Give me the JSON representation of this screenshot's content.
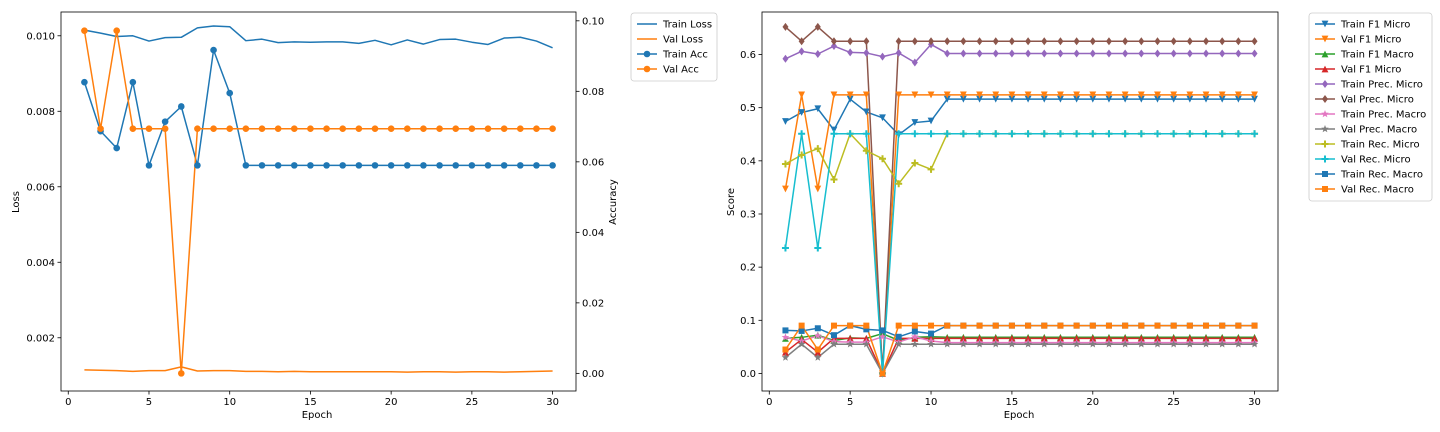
{
  "chart_data": [
    {
      "type": "line",
      "xlabel": "Epoch",
      "ylabel": "Loss",
      "y2label": "Accuracy",
      "xlim": [
        -0.45,
        31.45
      ],
      "ylim": [
        0.00059,
        0.01063
      ],
      "y2lim": [
        -0.005,
        0.1025
      ],
      "x_ticks": [
        0,
        5,
        10,
        15,
        20,
        25,
        30
      ],
      "y_ticks": [
        0.002,
        0.004,
        0.006,
        0.008,
        0.01
      ],
      "y_tick_labels": [
        "0.002",
        "0.004",
        "0.006",
        "0.008",
        "0.010"
      ],
      "y2_ticks": [
        0.0,
        0.02,
        0.04,
        0.06,
        0.08,
        0.1
      ],
      "y2_tick_labels": [
        "0.00",
        "0.02",
        "0.04",
        "0.06",
        "0.08",
        "0.10"
      ],
      "legend_position": "outside upper right",
      "x": [
        1,
        2,
        3,
        4,
        5,
        6,
        7,
        8,
        9,
        10,
        11,
        12,
        13,
        14,
        15,
        16,
        17,
        18,
        19,
        20,
        21,
        22,
        23,
        24,
        25,
        26,
        27,
        28,
        29,
        30
      ],
      "series": [
        {
          "name": "Train Loss",
          "axis": "left",
          "color": "#1f77b4",
          "marker": "none",
          "values": [
            0.01015,
            0.01007,
            0.00998,
            0.01,
            0.00986,
            0.00995,
            0.00996,
            0.01021,
            0.01026,
            0.01024,
            0.00987,
            0.00991,
            0.00982,
            0.00984,
            0.00983,
            0.00984,
            0.00984,
            0.0098,
            0.00988,
            0.00976,
            0.00989,
            0.00978,
            0.0099,
            0.00991,
            0.00983,
            0.00977,
            0.00994,
            0.00996,
            0.00986,
            0.00968
          ]
        },
        {
          "name": "Val Loss",
          "axis": "left",
          "color": "#ff7f0e",
          "marker": "none",
          "values": [
            0.00115,
            0.00114,
            0.00113,
            0.00111,
            0.00113,
            0.00113,
            0.00123,
            0.00112,
            0.00113,
            0.00113,
            0.00111,
            0.00111,
            0.0011,
            0.00111,
            0.0011,
            0.0011,
            0.0011,
            0.0011,
            0.0011,
            0.0011,
            0.00109,
            0.0011,
            0.0011,
            0.00109,
            0.0011,
            0.0011,
            0.00109,
            0.0011,
            0.00111,
            0.00112
          ]
        },
        {
          "name": "Train Acc",
          "axis": "right",
          "color": "#1f77b4",
          "marker": "circle",
          "values": [
            0.0826,
            0.0687,
            0.0639,
            0.0826,
            0.059,
            0.0714,
            0.0757,
            0.059,
            0.0917,
            0.0795,
            0.059,
            0.059,
            0.059,
            0.059,
            0.059,
            0.059,
            0.059,
            0.059,
            0.059,
            0.059,
            0.059,
            0.059,
            0.059,
            0.059,
            0.059,
            0.059,
            0.059,
            0.059,
            0.059,
            0.059
          ]
        },
        {
          "name": "Val Acc",
          "axis": "right",
          "color": "#ff7f0e",
          "marker": "circle",
          "values": [
            0.0972,
            0.0694,
            0.0972,
            0.0694,
            0.0694,
            0.0694,
            0.0,
            0.0694,
            0.0694,
            0.0694,
            0.0694,
            0.0694,
            0.0694,
            0.0694,
            0.0694,
            0.0694,
            0.0694,
            0.0694,
            0.0694,
            0.0694,
            0.0694,
            0.0694,
            0.0694,
            0.0694,
            0.0694,
            0.0694,
            0.0694,
            0.0694,
            0.0694,
            0.0694
          ]
        }
      ]
    },
    {
      "type": "line",
      "xlabel": "Epoch",
      "ylabel": "Score",
      "xlim": [
        -0.45,
        31.45
      ],
      "ylim": [
        -0.033,
        0.68
      ],
      "x_ticks": [
        0,
        5,
        10,
        15,
        20,
        25,
        30
      ],
      "y_ticks": [
        0.0,
        0.1,
        0.2,
        0.3,
        0.4,
        0.5,
        0.6
      ],
      "y_tick_labels": [
        "0.0",
        "0.1",
        "0.2",
        "0.3",
        "0.4",
        "0.5",
        "0.6"
      ],
      "legend_position": "outside upper right",
      "x": [
        1,
        2,
        3,
        4,
        5,
        6,
        7,
        8,
        9,
        10,
        11,
        12,
        13,
        14,
        15,
        16,
        17,
        18,
        19,
        20,
        21,
        22,
        23,
        24,
        25,
        26,
        27,
        28,
        29,
        30
      ],
      "series": [
        {
          "name": "Train F1 Micro",
          "color": "#1f77b4",
          "marker": "tri_down",
          "values": [
            0.474,
            0.491,
            0.498,
            0.458,
            0.516,
            0.492,
            0.481,
            0.449,
            0.472,
            0.475,
            0.516,
            0.516,
            0.516,
            0.516,
            0.516,
            0.516,
            0.516,
            0.516,
            0.516,
            0.516,
            0.516,
            0.516,
            0.516,
            0.516,
            0.516,
            0.516,
            0.516,
            0.516,
            0.516,
            0.516
          ]
        },
        {
          "name": "Val F1 Micro",
          "color": "#ff7f0e",
          "marker": "tri_down",
          "values": [
            0.347,
            0.524,
            0.347,
            0.524,
            0.524,
            0.524,
            0.0,
            0.524,
            0.524,
            0.524,
            0.524,
            0.524,
            0.524,
            0.524,
            0.524,
            0.524,
            0.524,
            0.524,
            0.524,
            0.524,
            0.524,
            0.524,
            0.524,
            0.524,
            0.524,
            0.524,
            0.524,
            0.524,
            0.524,
            0.524
          ]
        },
        {
          "name": "Train F1 Macro",
          "color": "#2ca02c",
          "marker": "tri_up",
          "values": [
            0.066,
            0.068,
            0.072,
            0.062,
            0.067,
            0.066,
            0.075,
            0.062,
            0.068,
            0.069,
            0.068,
            0.068,
            0.068,
            0.068,
            0.068,
            0.068,
            0.068,
            0.068,
            0.068,
            0.068,
            0.068,
            0.068,
            0.068,
            0.068,
            0.068,
            0.068,
            0.068,
            0.068,
            0.068,
            0.068
          ]
        },
        {
          "name": "Val F1 Micro",
          "color": "#d62728",
          "marker": "tri_up",
          "values": [
            0.04,
            0.064,
            0.04,
            0.066,
            0.066,
            0.066,
            0.0,
            0.066,
            0.066,
            0.066,
            0.066,
            0.066,
            0.066,
            0.066,
            0.066,
            0.066,
            0.066,
            0.066,
            0.066,
            0.066,
            0.066,
            0.066,
            0.066,
            0.066,
            0.066,
            0.066,
            0.066,
            0.066,
            0.066,
            0.066
          ]
        },
        {
          "name": "Train Prec. Micro",
          "color": "#9467bd",
          "marker": "diamond",
          "values": [
            0.592,
            0.606,
            0.601,
            0.616,
            0.604,
            0.603,
            0.596,
            0.603,
            0.585,
            0.619,
            0.602,
            0.602,
            0.602,
            0.602,
            0.602,
            0.602,
            0.602,
            0.602,
            0.602,
            0.602,
            0.602,
            0.602,
            0.602,
            0.602,
            0.602,
            0.602,
            0.602,
            0.602,
            0.602,
            0.602
          ]
        },
        {
          "name": "Val Prec. Micro",
          "color": "#8c564b",
          "marker": "diamond",
          "values": [
            0.652,
            0.625,
            0.652,
            0.625,
            0.625,
            0.625,
            0.0,
            0.625,
            0.625,
            0.625,
            0.625,
            0.625,
            0.625,
            0.625,
            0.625,
            0.625,
            0.625,
            0.625,
            0.625,
            0.625,
            0.625,
            0.625,
            0.625,
            0.625,
            0.625,
            0.625,
            0.625,
            0.625,
            0.625,
            0.625
          ]
        },
        {
          "name": "Train Prec. Macro",
          "color": "#e377c2",
          "marker": "star",
          "values": [
            0.068,
            0.061,
            0.071,
            0.06,
            0.059,
            0.059,
            0.069,
            0.059,
            0.069,
            0.061,
            0.058,
            0.058,
            0.058,
            0.058,
            0.058,
            0.058,
            0.058,
            0.058,
            0.058,
            0.058,
            0.058,
            0.058,
            0.058,
            0.058,
            0.058,
            0.058,
            0.058,
            0.058,
            0.058,
            0.058
          ]
        },
        {
          "name": "Val Prec. Macro",
          "color": "#7f7f7f",
          "marker": "star",
          "values": [
            0.03,
            0.055,
            0.03,
            0.055,
            0.055,
            0.055,
            0.0,
            0.055,
            0.055,
            0.055,
            0.055,
            0.055,
            0.055,
            0.055,
            0.055,
            0.055,
            0.055,
            0.055,
            0.055,
            0.055,
            0.055,
            0.055,
            0.055,
            0.055,
            0.055,
            0.055,
            0.055,
            0.055,
            0.055,
            0.055
          ]
        },
        {
          "name": "Train Rec. Micro",
          "color": "#bcbd22",
          "marker": "plus",
          "values": [
            0.394,
            0.411,
            0.423,
            0.365,
            0.451,
            0.419,
            0.404,
            0.357,
            0.396,
            0.384,
            0.451,
            0.451,
            0.451,
            0.451,
            0.451,
            0.451,
            0.451,
            0.451,
            0.451,
            0.451,
            0.451,
            0.451,
            0.451,
            0.451,
            0.451,
            0.451,
            0.451,
            0.451,
            0.451,
            0.451
          ]
        },
        {
          "name": "Val Rec. Micro",
          "color": "#17becf",
          "marker": "plus",
          "values": [
            0.236,
            0.451,
            0.236,
            0.451,
            0.451,
            0.451,
            0.0,
            0.451,
            0.451,
            0.451,
            0.451,
            0.451,
            0.451,
            0.451,
            0.451,
            0.451,
            0.451,
            0.451,
            0.451,
            0.451,
            0.451,
            0.451,
            0.451,
            0.451,
            0.451,
            0.451,
            0.451,
            0.451,
            0.451,
            0.451
          ]
        },
        {
          "name": "Train Rec. Macro",
          "color": "#1f77b4",
          "marker": "square",
          "values": [
            0.081,
            0.08,
            0.085,
            0.072,
            0.09,
            0.083,
            0.081,
            0.069,
            0.079,
            0.075,
            0.09,
            0.09,
            0.09,
            0.09,
            0.09,
            0.09,
            0.09,
            0.09,
            0.09,
            0.09,
            0.09,
            0.09,
            0.09,
            0.09,
            0.09,
            0.09,
            0.09,
            0.09,
            0.09,
            0.09
          ]
        },
        {
          "name": "Val Rec. Macro",
          "color": "#ff7f0e",
          "marker": "square",
          "values": [
            0.045,
            0.09,
            0.045,
            0.09,
            0.09,
            0.09,
            0.0,
            0.09,
            0.09,
            0.09,
            0.09,
            0.09,
            0.09,
            0.09,
            0.09,
            0.09,
            0.09,
            0.09,
            0.09,
            0.09,
            0.09,
            0.09,
            0.09,
            0.09,
            0.09,
            0.09,
            0.09,
            0.09,
            0.09,
            0.09
          ]
        }
      ]
    }
  ]
}
